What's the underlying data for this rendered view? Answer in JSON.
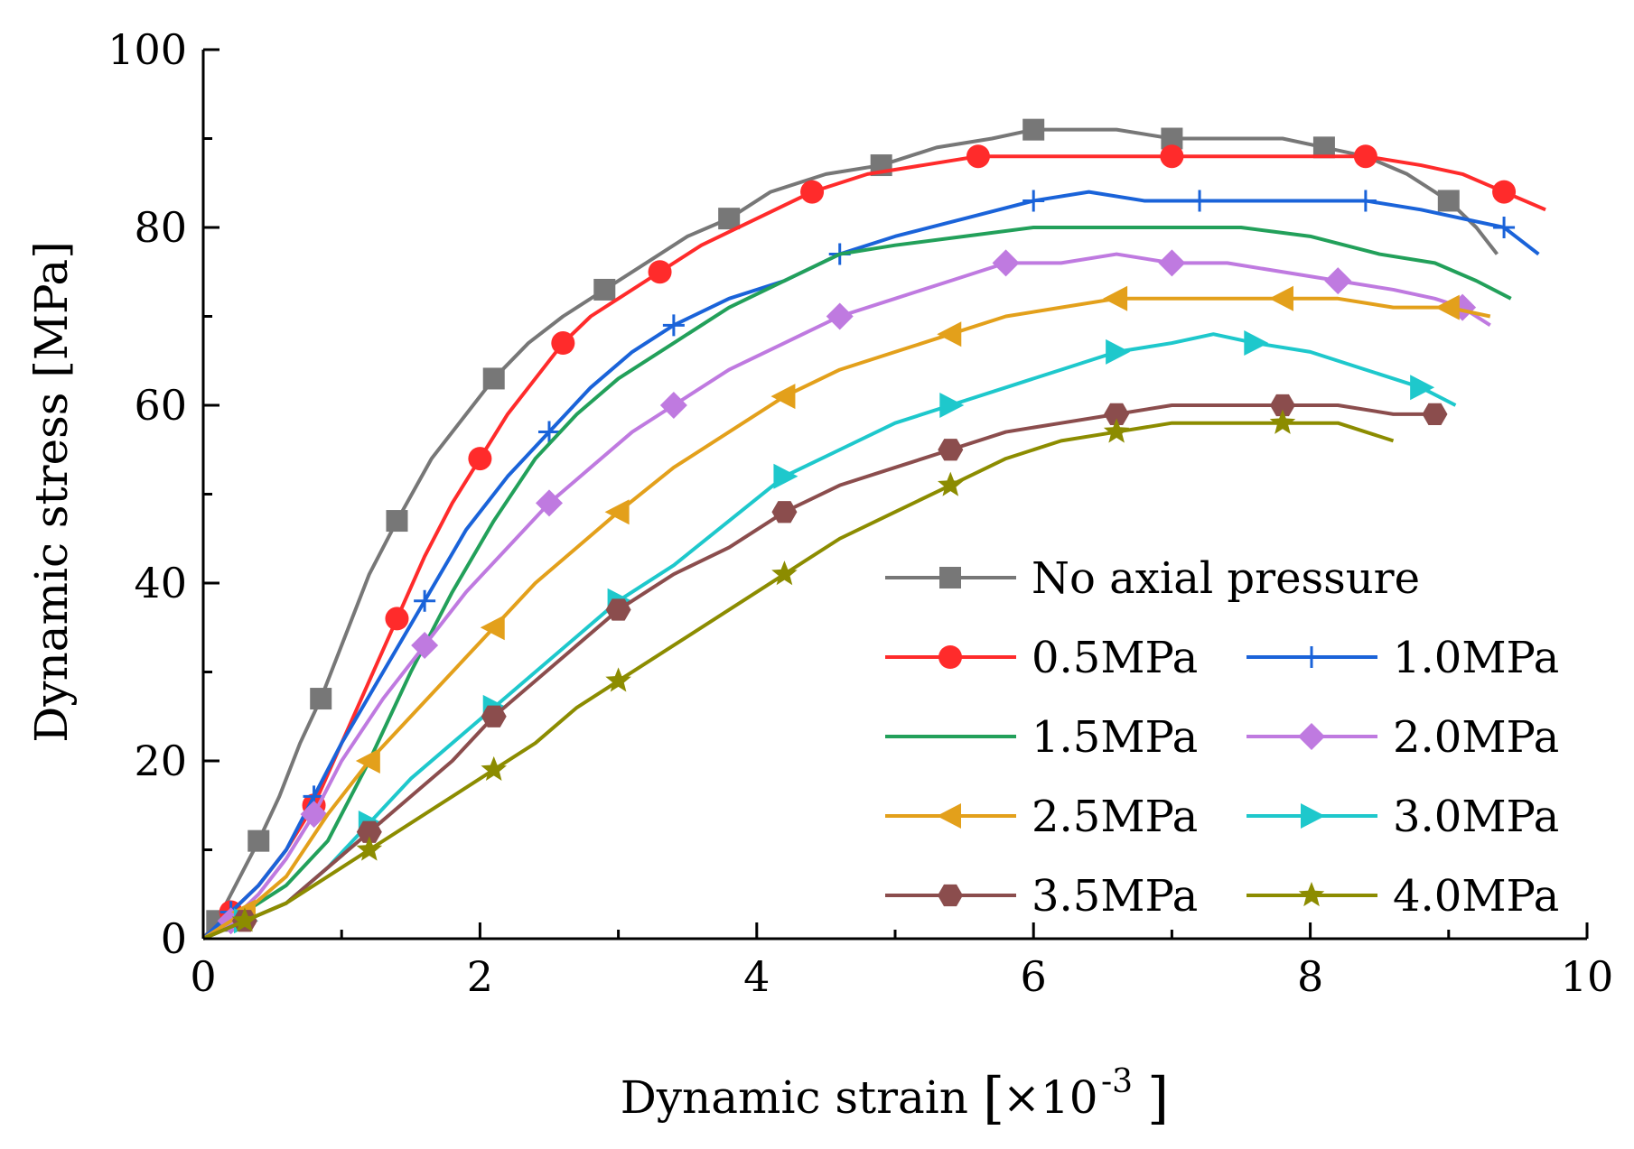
{
  "chart_data": {
    "type": "line",
    "title": "",
    "xlabel": "Dynamic strain",
    "xlabel_unit": "×10",
    "xlabel_unit_exp": "-3",
    "ylabel": "Dynamic stress [MPa]",
    "xlim": [
      0,
      10
    ],
    "ylim": [
      0,
      100
    ],
    "xticks": [
      0,
      2,
      4,
      6,
      8,
      10
    ],
    "yticks": [
      0,
      20,
      40,
      60,
      80,
      100
    ],
    "grid": false,
    "legend_position": "bottom-right",
    "series": [
      {
        "name": "No axial pressure",
        "color": "#777777",
        "marker": "square",
        "x": [
          0,
          0.1,
          0.2,
          0.3,
          0.4,
          0.55,
          0.7,
          0.85,
          1.0,
          1.2,
          1.4,
          1.65,
          1.9,
          2.1,
          2.35,
          2.6,
          2.9,
          3.2,
          3.5,
          3.8,
          4.1,
          4.5,
          4.9,
          5.3,
          5.7,
          6.0,
          6.3,
          6.6,
          7.0,
          7.4,
          7.8,
          8.1,
          8.4,
          8.7,
          9.0,
          9.2,
          9.35
        ],
        "y": [
          0,
          2,
          5,
          8,
          11,
          16,
          22,
          27,
          33,
          41,
          47,
          54,
          59,
          63,
          67,
          70,
          73,
          76,
          79,
          81,
          84,
          86,
          87,
          89,
          90,
          91,
          91,
          91,
          90,
          90,
          90,
          89,
          88,
          86,
          83,
          80,
          77
        ]
      },
      {
        "name": "0.5MPa",
        "color": "#ff2b2b",
        "marker": "circle",
        "x": [
          0,
          0.2,
          0.4,
          0.6,
          0.8,
          1.0,
          1.2,
          1.4,
          1.6,
          1.8,
          2.0,
          2.2,
          2.4,
          2.6,
          2.8,
          3.0,
          3.3,
          3.6,
          4.0,
          4.4,
          4.8,
          5.2,
          5.6,
          6.0,
          6.5,
          7.0,
          7.5,
          8.0,
          8.4,
          8.8,
          9.1,
          9.4,
          9.7
        ],
        "y": [
          0,
          3,
          6,
          10,
          15,
          22,
          29,
          36,
          43,
          49,
          54,
          59,
          63,
          67,
          70,
          72,
          75,
          78,
          81,
          84,
          86,
          87,
          88,
          88,
          88,
          88,
          88,
          88,
          88,
          87,
          86,
          84,
          82
        ]
      },
      {
        "name": "1.0MPa",
        "color": "#1a63d9",
        "marker": "plus",
        "x": [
          0,
          0.2,
          0.4,
          0.6,
          0.8,
          1.0,
          1.3,
          1.6,
          1.9,
          2.2,
          2.5,
          2.8,
          3.1,
          3.4,
          3.8,
          4.2,
          4.6,
          5.0,
          5.5,
          6.0,
          6.4,
          6.8,
          7.2,
          7.6,
          8.0,
          8.4,
          8.8,
          9.1,
          9.4,
          9.65
        ],
        "y": [
          0,
          3,
          6,
          10,
          16,
          22,
          30,
          38,
          46,
          52,
          57,
          62,
          66,
          69,
          72,
          74,
          77,
          79,
          81,
          83,
          84,
          83,
          83,
          83,
          83,
          83,
          82,
          81,
          80,
          77
        ]
      },
      {
        "name": "1.5MPa",
        "color": "#22a05a",
        "marker": "none",
        "x": [
          0,
          0.3,
          0.6,
          0.9,
          1.2,
          1.5,
          1.8,
          2.1,
          2.4,
          2.7,
          3.0,
          3.4,
          3.8,
          4.2,
          4.6,
          5.0,
          5.5,
          6.0,
          6.5,
          7.0,
          7.5,
          8.0,
          8.5,
          8.9,
          9.2,
          9.45
        ],
        "y": [
          0,
          3,
          6,
          11,
          20,
          30,
          39,
          47,
          54,
          59,
          63,
          67,
          71,
          74,
          77,
          78,
          79,
          80,
          80,
          80,
          80,
          79,
          77,
          76,
          74,
          72
        ]
      },
      {
        "name": "2.0MPa",
        "color": "#bf7ae0",
        "marker": "diamond",
        "x": [
          0,
          0.2,
          0.4,
          0.6,
          0.8,
          1.0,
          1.3,
          1.6,
          1.9,
          2.2,
          2.5,
          2.8,
          3.1,
          3.4,
          3.8,
          4.2,
          4.6,
          5.0,
          5.4,
          5.8,
          6.2,
          6.6,
          7.0,
          7.4,
          7.8,
          8.2,
          8.6,
          8.9,
          9.1,
          9.3
        ],
        "y": [
          0,
          2,
          5,
          9,
          14,
          20,
          27,
          33,
          39,
          44,
          49,
          53,
          57,
          60,
          64,
          67,
          70,
          72,
          74,
          76,
          76,
          77,
          76,
          76,
          75,
          74,
          73,
          72,
          71,
          69
        ]
      },
      {
        "name": "2.5MPa",
        "color": "#e3a01b",
        "marker": "triangle-left",
        "x": [
          0,
          0.3,
          0.6,
          0.9,
          1.2,
          1.5,
          1.8,
          2.1,
          2.4,
          2.7,
          3.0,
          3.4,
          3.8,
          4.2,
          4.6,
          5.0,
          5.4,
          5.8,
          6.2,
          6.6,
          7.0,
          7.4,
          7.8,
          8.2,
          8.6,
          9.0,
          9.3
        ],
        "y": [
          0,
          3,
          7,
          14,
          20,
          25,
          30,
          35,
          40,
          44,
          48,
          53,
          57,
          61,
          64,
          66,
          68,
          70,
          71,
          72,
          72,
          72,
          72,
          72,
          71,
          71,
          70
        ]
      },
      {
        "name": "3.0MPa",
        "color": "#1ec8cc",
        "marker": "triangle-right",
        "x": [
          0,
          0.3,
          0.6,
          0.9,
          1.2,
          1.5,
          1.8,
          2.1,
          2.4,
          2.7,
          3.0,
          3.4,
          3.8,
          4.2,
          4.6,
          5.0,
          5.4,
          5.8,
          6.2,
          6.6,
          7.0,
          7.3,
          7.6,
          8.0,
          8.4,
          8.8,
          9.05
        ],
        "y": [
          0,
          2,
          4,
          8,
          13,
          18,
          22,
          26,
          30,
          34,
          38,
          42,
          47,
          52,
          55,
          58,
          60,
          62,
          64,
          66,
          67,
          68,
          67,
          66,
          64,
          62,
          60
        ]
      },
      {
        "name": "3.5MPa",
        "color": "#8b4d4d",
        "marker": "hexagon",
        "x": [
          0,
          0.3,
          0.6,
          0.9,
          1.2,
          1.5,
          1.8,
          2.1,
          2.4,
          2.7,
          3.0,
          3.4,
          3.8,
          4.2,
          4.6,
          5.0,
          5.4,
          5.8,
          6.2,
          6.6,
          7.0,
          7.4,
          7.8,
          8.2,
          8.6,
          8.9
        ],
        "y": [
          0,
          2,
          4,
          8,
          12,
          16,
          20,
          25,
          29,
          33,
          37,
          41,
          44,
          48,
          51,
          53,
          55,
          57,
          58,
          59,
          60,
          60,
          60,
          60,
          59,
          59
        ]
      },
      {
        "name": "4.0MPa",
        "color": "#8c8c00",
        "marker": "star",
        "x": [
          0,
          0.3,
          0.6,
          0.9,
          1.2,
          1.5,
          1.8,
          2.1,
          2.4,
          2.7,
          3.0,
          3.4,
          3.8,
          4.2,
          4.6,
          5.0,
          5.4,
          5.8,
          6.2,
          6.6,
          7.0,
          7.4,
          7.8,
          8.2,
          8.6
        ],
        "y": [
          0,
          2,
          4,
          7,
          10,
          13,
          16,
          19,
          22,
          26,
          29,
          33,
          37,
          41,
          45,
          48,
          51,
          54,
          56,
          57,
          58,
          58,
          58,
          58,
          56
        ]
      }
    ]
  }
}
